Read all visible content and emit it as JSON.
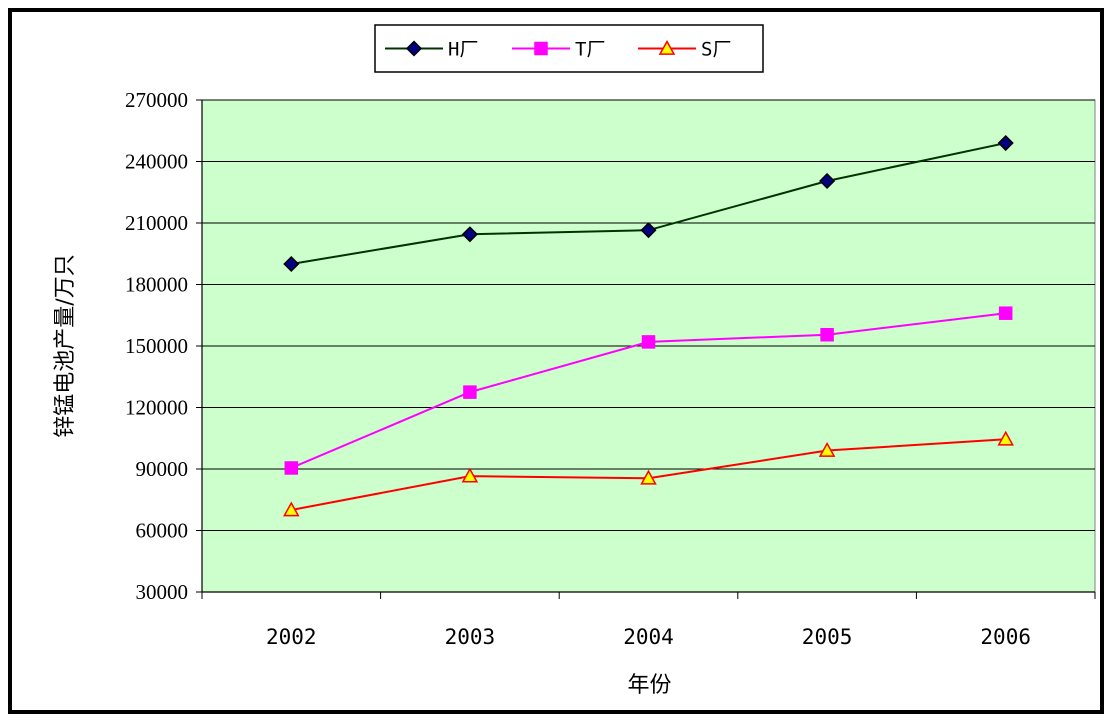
{
  "chart_data": {
    "type": "line",
    "title": "",
    "xlabel": "年份",
    "ylabel": "锌锰电池产量/万只",
    "categories": [
      "2002",
      "2003",
      "2004",
      "2005",
      "2006"
    ],
    "ylim": [
      30000,
      270000
    ],
    "yticks": [
      30000,
      60000,
      90000,
      120000,
      150000,
      180000,
      210000,
      240000,
      270000
    ],
    "grid": true,
    "legend_position": "top-center",
    "plot_background": "#ccffcc",
    "series": [
      {
        "name": "H厂",
        "values": [
          190000,
          204500,
          206500,
          230500,
          249000
        ],
        "color": "#003300",
        "marker": "diamond",
        "marker_fill": "#000080"
      },
      {
        "name": "T厂",
        "values": [
          90500,
          127500,
          152000,
          155500,
          166000
        ],
        "color": "#ff00ff",
        "marker": "square",
        "marker_fill": "#ff00ff"
      },
      {
        "name": "S厂",
        "values": [
          70000,
          86500,
          85500,
          99000,
          104500
        ],
        "color": "#ff0000",
        "marker": "triangle",
        "marker_fill": "#ffff00"
      }
    ]
  }
}
